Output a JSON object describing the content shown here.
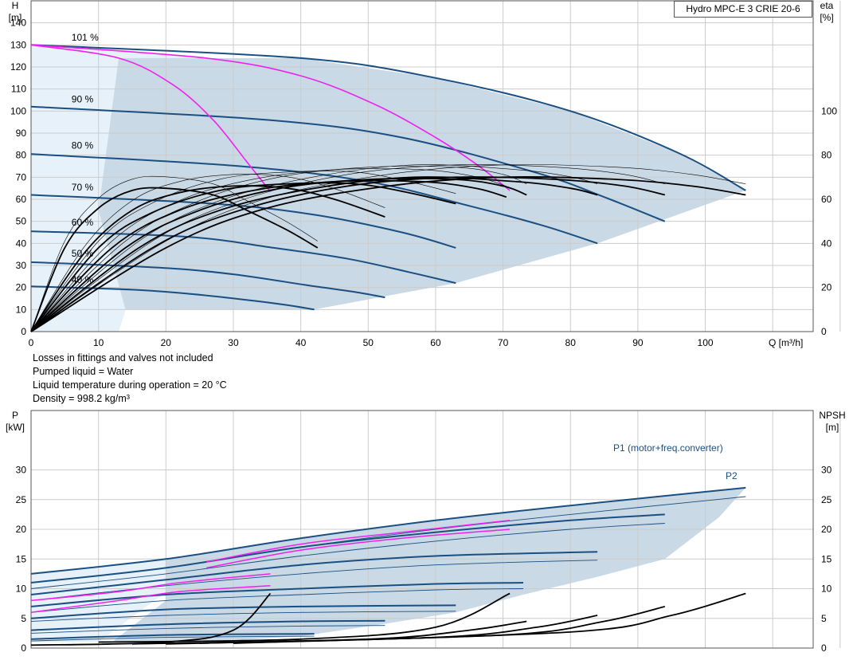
{
  "title": "Hydro MPC-E 3 CRIE 20-6",
  "notes": [
    "Losses in fittings and valves not included",
    "Pumped liquid = Water",
    "Liquid temperature during operation = 20 °C",
    "Density = 998.2 kg/m³"
  ],
  "colors": {
    "curve": "#1a4f82",
    "highlight": "#ee22ee",
    "efficiency": "#000000",
    "area": "#c9d9e5",
    "area_light": "#e6f1fa",
    "grid": "#cccccc"
  },
  "chart_data": [
    {
      "type": "line",
      "name": "head",
      "y_label_left": "H",
      "y_unit_left": "[m]",
      "y_label_right": "eta",
      "y_unit_right": "[%]",
      "x_label": "Q [m³/h]",
      "x_ticks": [
        0,
        10,
        20,
        30,
        40,
        50,
        60,
        70,
        80,
        90,
        100
      ],
      "y_ticks": [
        0,
        10,
        20,
        30,
        40,
        50,
        60,
        70,
        80,
        90,
        100,
        110,
        120,
        130,
        140
      ],
      "eta_ticks": [
        0,
        20,
        40,
        60,
        80,
        100
      ],
      "xlim": [
        0,
        116
      ],
      "ylim": [
        0,
        150
      ],
      "eta_lim": [
        0,
        150
      ],
      "speed_labels": [
        {
          "text": "101 %",
          "x": 6,
          "y": 132
        },
        {
          "text": "90 %",
          "x": 6,
          "y": 104
        },
        {
          "text": "80 %",
          "x": 6,
          "y": 83
        },
        {
          "text": "70 %",
          "x": 6,
          "y": 64
        },
        {
          "text": "60 %",
          "x": 6,
          "y": 48
        },
        {
          "text": "50 %",
          "x": 6,
          "y": 34
        },
        {
          "text": "40 %",
          "x": 6,
          "y": 22
        }
      ],
      "qh_curves": [
        {
          "speed": "101 %",
          "points": [
            [
              0,
              130
            ],
            [
              40,
              124
            ],
            [
              60,
              115
            ],
            [
              80,
              100
            ],
            [
              96,
              81
            ],
            [
              106,
              64
            ]
          ]
        },
        {
          "speed": "90 %",
          "points": [
            [
              0,
              102
            ],
            [
              35,
              96
            ],
            [
              55,
              88
            ],
            [
              75,
              72
            ],
            [
              85,
              61
            ],
            [
              94,
              50
            ]
          ]
        },
        {
          "speed": "80 %",
          "points": [
            [
              0,
              80.5
            ],
            [
              31,
              75
            ],
            [
              50,
              68
            ],
            [
              65,
              57
            ],
            [
              76,
              48
            ],
            [
              84,
              40
            ]
          ]
        },
        {
          "speed": "70 %",
          "points": [
            [
              0,
              62
            ],
            [
              27,
              58
            ],
            [
              42,
              53
            ],
            [
              55,
              45
            ],
            [
              63,
              38
            ]
          ]
        },
        {
          "speed": "60 %",
          "points": [
            [
              0,
              45.5
            ],
            [
              23,
              43
            ],
            [
              36,
              38
            ],
            [
              47,
              33
            ],
            [
              56,
              27
            ],
            [
              63,
              22
            ]
          ]
        },
        {
          "speed": "50 %",
          "points": [
            [
              0,
              31.5
            ],
            [
              19,
              29
            ],
            [
              30,
              26
            ],
            [
              41,
              21
            ],
            [
              48,
              18
            ],
            [
              52.5,
              15.5
            ]
          ]
        },
        {
          "speed": "40 %",
          "points": [
            [
              0,
              20.5
            ],
            [
              15,
              19
            ],
            [
              24,
              17
            ],
            [
              33,
              14
            ],
            [
              38,
              12
            ],
            [
              42,
              10
            ]
          ]
        }
      ],
      "qh_highlight": [
        {
          "points": [
            [
              0,
              130
            ],
            [
              13,
              124
            ],
            [
              21,
              112
            ],
            [
              27,
              96
            ],
            [
              32,
              77
            ],
            [
              35.5,
              63.5
            ]
          ]
        },
        {
          "points": [
            [
              0,
              130
            ],
            [
              26,
              124
            ],
            [
              40,
              116
            ],
            [
              51,
              103
            ],
            [
              60,
              88
            ],
            [
              66,
              76
            ],
            [
              71,
              64
            ]
          ]
        }
      ],
      "eta_curves": [
        {
          "points": [
            [
              0,
              0
            ],
            [
              5,
              38
            ],
            [
              10,
              56
            ],
            [
              15,
              64
            ],
            [
              20,
              65
            ],
            [
              27,
              62
            ],
            [
              32,
              55
            ],
            [
              38,
              46
            ],
            [
              42.5,
              38
            ]
          ]
        },
        {
          "points": [
            [
              0,
              0
            ],
            [
              8,
              36
            ],
            [
              15,
              55
            ],
            [
              22,
              63
            ],
            [
              30,
              66
            ],
            [
              38,
              65
            ],
            [
              45,
              60
            ],
            [
              52.5,
              52
            ]
          ]
        },
        {
          "points": [
            [
              0,
              0
            ],
            [
              10,
              38
            ],
            [
              18,
              54
            ],
            [
              28,
              64
            ],
            [
              38,
              67
            ],
            [
              48,
              67
            ],
            [
              56,
              63
            ],
            [
              63,
              58
            ]
          ]
        },
        {
          "points": [
            [
              0,
              0
            ],
            [
              12,
              38
            ],
            [
              22,
              55
            ],
            [
              33,
              64
            ],
            [
              45,
              68
            ],
            [
              58,
              68
            ],
            [
              66,
              65
            ],
            [
              70.5,
              61
            ]
          ]
        },
        {
          "points": [
            [
              0,
              0
            ],
            [
              14,
              38
            ],
            [
              25,
              55
            ],
            [
              37,
              65
            ],
            [
              50,
              69
            ],
            [
              63,
              69
            ],
            [
              70,
              66
            ],
            [
              73.5,
              62
            ]
          ]
        },
        {
          "points": [
            [
              0,
              0
            ],
            [
              16,
              38
            ],
            [
              28,
              55
            ],
            [
              42,
              65
            ],
            [
              57,
              70
            ],
            [
              72,
              68
            ],
            [
              80,
              65
            ],
            [
              84,
              62
            ]
          ]
        },
        {
          "points": [
            [
              0,
              0
            ],
            [
              18,
              38
            ],
            [
              31,
              55
            ],
            [
              47,
              66
            ],
            [
              63,
              70
            ],
            [
              78,
              69
            ],
            [
              88,
              66
            ],
            [
              94,
              62
            ]
          ]
        },
        {
          "points": [
            [
              0,
              0
            ],
            [
              20,
              38
            ],
            [
              35,
              56
            ],
            [
              53,
              66
            ],
            [
              70,
              70
            ],
            [
              87,
              69
            ],
            [
              98,
              66
            ],
            [
              106,
              62
            ]
          ]
        }
      ]
    },
    {
      "type": "line",
      "name": "power",
      "y_label_left": "P",
      "y_unit_left": "[kW]",
      "y_label_right": "NPSH",
      "y_unit_right": "[m]",
      "x_ticks": [
        0,
        10,
        20,
        30,
        40,
        50,
        60,
        70,
        80,
        90,
        100
      ],
      "y_ticks": [
        0,
        5,
        10,
        15,
        20,
        25,
        30
      ],
      "npsh_ticks": [
        0,
        5,
        10,
        15,
        20,
        25,
        30
      ],
      "xlim": [
        0,
        116
      ],
      "ylim": [
        0,
        40
      ],
      "npsh_lim": [
        0,
        40
      ],
      "series_labels": [
        "P1 (motor+freq.converter)",
        "P2"
      ],
      "p1_curves": [
        {
          "points": [
            [
              0,
              12.5
            ],
            [
              20,
              15
            ],
            [
              40,
              18.5
            ],
            [
              60,
              21.5
            ],
            [
              80,
              24
            ],
            [
              106,
              27
            ]
          ]
        },
        {
          "points": [
            [
              0,
              11
            ],
            [
              20,
              13.5
            ],
            [
              40,
              17
            ],
            [
              60,
              19.5
            ],
            [
              80,
              21.5
            ],
            [
              94,
              22.5
            ]
          ]
        },
        {
          "points": [
            [
              0,
              9
            ],
            [
              20,
              11.5
            ],
            [
              40,
              14
            ],
            [
              60,
              15.5
            ],
            [
              84,
              16.2
            ]
          ]
        },
        {
          "points": [
            [
              0,
              7
            ],
            [
              20,
              9
            ],
            [
              40,
              10
            ],
            [
              60,
              10.8
            ],
            [
              73,
              11
            ]
          ]
        },
        {
          "points": [
            [
              0,
              5
            ],
            [
              20,
              6.5
            ],
            [
              40,
              7
            ],
            [
              63,
              7.2
            ]
          ]
        },
        {
          "points": [
            [
              0,
              3
            ],
            [
              20,
              4
            ],
            [
              40,
              4.5
            ],
            [
              52.5,
              4.6
            ]
          ]
        },
        {
          "points": [
            [
              0,
              1.5
            ],
            [
              20,
              2.2
            ],
            [
              42,
              2.4
            ]
          ]
        }
      ],
      "p2_curves": [
        {
          "points": [
            [
              0,
              11
            ],
            [
              20,
              13.5
            ],
            [
              40,
              17
            ],
            [
              60,
              20
            ],
            [
              80,
              22.5
            ],
            [
              106,
              25.5
            ]
          ]
        },
        {
          "points": [
            [
              0,
              10
            ],
            [
              20,
              12.5
            ],
            [
              40,
              15.5
            ],
            [
              60,
              18
            ],
            [
              80,
              20
            ],
            [
              94,
              21
            ]
          ]
        },
        {
          "points": [
            [
              0,
              8
            ],
            [
              20,
              10.5
            ],
            [
              40,
              12.5
            ],
            [
              60,
              14
            ],
            [
              84,
              14.8
            ]
          ]
        },
        {
          "points": [
            [
              0,
              6
            ],
            [
              20,
              8
            ],
            [
              40,
              9
            ],
            [
              60,
              9.8
            ],
            [
              73,
              10
            ]
          ]
        },
        {
          "points": [
            [
              0,
              4.5
            ],
            [
              20,
              5.5
            ],
            [
              40,
              6
            ],
            [
              63,
              6.2
            ]
          ]
        },
        {
          "points": [
            [
              0,
              2.5
            ],
            [
              20,
              3.3
            ],
            [
              40,
              3.7
            ],
            [
              52.5,
              3.8
            ]
          ]
        },
        {
          "points": [
            [
              0,
              1.2
            ],
            [
              20,
              1.8
            ],
            [
              42,
              2
            ]
          ]
        }
      ],
      "p_highlight": [
        {
          "points": [
            [
              0,
              8
            ],
            [
              13,
              9.5
            ],
            [
              22,
              11
            ],
            [
              35.5,
              12.5
            ]
          ]
        },
        {
          "points": [
            [
              0,
              6
            ],
            [
              13,
              8
            ],
            [
              22,
              9.5
            ],
            [
              35.5,
              10.5
            ]
          ]
        },
        {
          "points": [
            [
              26,
              14.5
            ],
            [
              40,
              17.5
            ],
            [
              55,
              19.5
            ],
            [
              71,
              21.5
            ]
          ]
        },
        {
          "points": [
            [
              26,
              13.5
            ],
            [
              40,
              16.5
            ],
            [
              55,
              18.5
            ],
            [
              71,
              20
            ]
          ]
        }
      ],
      "npsh_curves": [
        {
          "points": [
            [
              0,
              0.5
            ],
            [
              20,
              1
            ],
            [
              30,
              3
            ],
            [
              35.5,
              9.2
            ]
          ]
        },
        {
          "points": [
            [
              10,
              1
            ],
            [
              40,
              1.5
            ],
            [
              60,
              3.5
            ],
            [
              71,
              9.2
            ]
          ]
        },
        {
          "points": [
            [
              15,
              0.7
            ],
            [
              50,
              1.5
            ],
            [
              65,
              3
            ],
            [
              73.5,
              4.5
            ]
          ]
        },
        {
          "points": [
            [
              20,
              0.7
            ],
            [
              60,
              1.8
            ],
            [
              75,
              3.5
            ],
            [
              84,
              5.5
            ]
          ]
        },
        {
          "points": [
            [
              25,
              0.8
            ],
            [
              70,
              2.2
            ],
            [
              85,
              4.5
            ],
            [
              94,
              7
            ]
          ]
        },
        {
          "points": [
            [
              30,
              0.8
            ],
            [
              80,
              2.7
            ],
            [
              95,
              5.5
            ],
            [
              106,
              9.2
            ]
          ]
        }
      ]
    }
  ]
}
